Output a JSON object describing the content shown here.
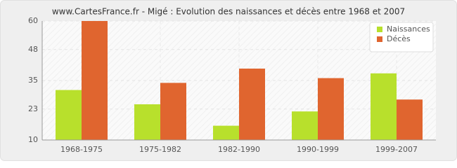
{
  "chart_data": {
    "type": "bar",
    "title": "www.CartesFrance.fr - Migé : Evolution des naissances et décès entre 1968 et 2007",
    "categories": [
      "1968-1975",
      "1975-1982",
      "1982-1990",
      "1990-1999",
      "1999-2007"
    ],
    "series": [
      {
        "name": "Naissances",
        "color": "#b8e02c",
        "values": [
          31,
          25,
          16,
          22,
          38
        ]
      },
      {
        "name": "Décès",
        "color": "#e0652f",
        "values": [
          60,
          34,
          40,
          36,
          27
        ]
      }
    ],
    "ylim": [
      10,
      60
    ],
    "yticks": [
      10,
      23,
      35,
      48,
      60
    ],
    "grid": true,
    "legend": "top-right"
  }
}
